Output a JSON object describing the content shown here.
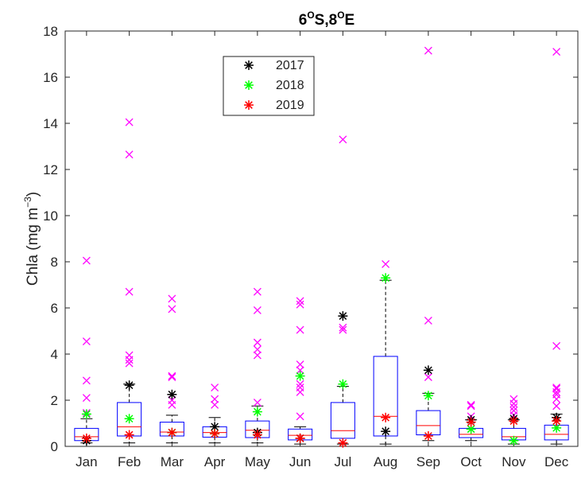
{
  "chart_data": {
    "type": "box",
    "title": "6°S,8°E",
    "title_parts": [
      "6",
      "O",
      "S,8",
      "O",
      "E"
    ],
    "ylabel": "Chla (mg m⁻³)",
    "ylabel_parts": [
      "Chla (mg m",
      "−3",
      ")"
    ],
    "xlabel": "",
    "ylim": [
      0,
      18
    ],
    "yticks": [
      0,
      2,
      4,
      6,
      8,
      10,
      12,
      14,
      16,
      18
    ],
    "categories": [
      "Jan",
      "Feb",
      "Mar",
      "Apr",
      "May",
      "Jun",
      "Jul",
      "Aug",
      "Sep",
      "Oct",
      "Nov",
      "Dec"
    ],
    "grid": false,
    "legend_position": "upper-left-inside",
    "colors": {
      "box": "#0000ff",
      "median": "#ff0000",
      "whisker": "#000000",
      "outlier": "#ff00ff",
      "series_2017": "#000000",
      "series_2018": "#00ff00",
      "series_2019": "#ff0000"
    },
    "boxes": [
      {
        "month": "Jan",
        "q1": 0.25,
        "median": 0.42,
        "q3": 0.78,
        "wlo": 0.15,
        "whi": 1.2,
        "outliers": [
          1.45,
          2.1,
          2.85,
          4.55,
          8.05
        ]
      },
      {
        "month": "Feb",
        "q1": 0.45,
        "median": 0.85,
        "q3": 1.9,
        "wlo": 0.15,
        "whi": 2.7,
        "outliers": [
          3.6,
          3.75,
          3.95,
          6.7,
          12.65,
          14.05
        ]
      },
      {
        "month": "Mar",
        "q1": 0.45,
        "median": 0.62,
        "q3": 1.05,
        "wlo": 0.15,
        "whi": 1.35,
        "outliers": [
          1.8,
          2.0,
          3.0,
          3.05,
          5.95,
          6.4
        ]
      },
      {
        "month": "Apr",
        "q1": 0.4,
        "median": 0.6,
        "q3": 0.85,
        "wlo": 0.15,
        "whi": 1.25,
        "outliers": [
          1.8,
          2.05,
          2.55
        ]
      },
      {
        "month": "May",
        "q1": 0.38,
        "median": 0.7,
        "q3": 1.1,
        "wlo": 0.15,
        "whi": 1.75,
        "outliers": [
          1.9,
          3.95,
          4.2,
          4.5,
          5.9,
          6.7
        ]
      },
      {
        "month": "Jun",
        "q1": 0.28,
        "median": 0.48,
        "q3": 0.75,
        "wlo": 0.1,
        "whi": 0.85,
        "outliers": [
          1.3,
          2.35,
          2.55,
          2.7,
          3.3,
          3.55,
          5.05,
          6.15,
          6.3
        ]
      },
      {
        "month": "Jul",
        "q1": 0.35,
        "median": 0.68,
        "q3": 1.9,
        "wlo": 0.1,
        "whi": 2.6,
        "outliers": [
          5.05,
          5.15,
          13.3
        ]
      },
      {
        "month": "Aug",
        "q1": 0.45,
        "median": 1.3,
        "q3": 3.9,
        "wlo": 0.1,
        "whi": 7.2,
        "outliers": [
          7.9
        ]
      },
      {
        "month": "Sep",
        "q1": 0.5,
        "median": 0.9,
        "q3": 1.55,
        "wlo": 0.25,
        "whi": 2.3,
        "outliers": [
          3.0,
          5.45,
          17.15
        ]
      },
      {
        "month": "Oct",
        "q1": 0.38,
        "median": 0.52,
        "q3": 0.78,
        "wlo": 0.25,
        "whi": 1.15,
        "outliers": [
          1.3,
          1.75,
          1.8
        ]
      },
      {
        "month": "Nov",
        "q1": 0.28,
        "median": 0.42,
        "q3": 0.78,
        "wlo": 0.1,
        "whi": 1.15,
        "outliers": [
          1.35,
          1.55,
          1.7,
          1.85,
          2.05
        ]
      },
      {
        "month": "Dec",
        "q1": 0.28,
        "median": 0.52,
        "q3": 0.92,
        "wlo": 0.1,
        "whi": 1.4,
        "outliers": [
          1.75,
          2.05,
          2.25,
          2.35,
          2.5,
          2.55,
          4.35,
          17.1
        ]
      }
    ],
    "series": [
      {
        "name": "2017",
        "values": [
          0.25,
          2.65,
          2.25,
          0.85,
          0.6,
          0.35,
          5.65,
          0.65,
          3.3,
          1.15,
          1.2,
          1.25
        ]
      },
      {
        "name": "2018",
        "values": [
          1.4,
          1.2,
          0.6,
          0.55,
          1.5,
          3.05,
          2.7,
          7.3,
          2.2,
          0.75,
          0.25,
          0.8
        ]
      },
      {
        "name": "2019",
        "values": [
          0.35,
          0.5,
          0.6,
          0.55,
          0.5,
          0.35,
          0.15,
          1.25,
          0.45,
          1.05,
          1.1,
          1.1
        ]
      }
    ]
  }
}
